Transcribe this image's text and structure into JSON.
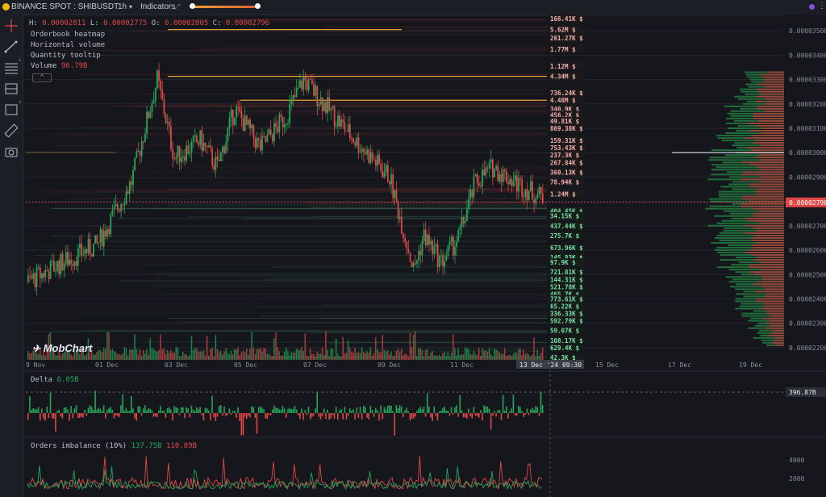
{
  "topbar": {
    "symbol": "BINANCE SPOT : SHIBUSDT",
    "timeframe": "1h",
    "indicators_label": "Indicators"
  },
  "icons": [
    "crosshair-icon",
    "trendline-icon",
    "fib-icon",
    "patterns-icon",
    "rectangle-icon",
    "ruler-icon",
    "screenshot-icon"
  ],
  "ohlc": {
    "h_label": "H:",
    "h": "0.00002811",
    "l_label": "L:",
    "l": "0.00002775",
    "o_label": "O:",
    "o": "0.00002805",
    "c_label": "C:",
    "c": "0.00002796"
  },
  "legend": {
    "orderbook_heatmap": "Orderbook heatmap",
    "horizontal_volume": "Horizontal volume",
    "quantity_tooltip": "Quantity tooltip",
    "volume_label": "Volume",
    "volume_value": "96.79B"
  },
  "watermark": "MobChart",
  "colors": {
    "up": "#26a65b",
    "down": "#e04848",
    "ask_label": "#f0a0a0",
    "bid_label": "#4fd18b",
    "orange": "#e8a23a"
  },
  "price_axis": [
    "0.00003500",
    "0.00003400",
    "0.00003300",
    "0.00003200",
    "0.00003100",
    "0.00003000",
    "0.00002900",
    "0.00002800",
    "0.00002700",
    "0.00002600",
    "0.00002500",
    "0.00002400",
    "0.00002300",
    "0.00002200"
  ],
  "price_range": [
    2.15e-05,
    3.56e-05
  ],
  "current_price": "0.00002796",
  "time_axis": [
    "9 Nov",
    "01 Dec",
    "03 Dec",
    "05 Dec",
    "07 Dec",
    "09 Dec",
    "11 Dec",
    "15 Dec",
    "17 Dec",
    "19 Dec"
  ],
  "cursor_time": "13 Dec '24  09:30",
  "ask_levels": [
    {
      "price": 3.55e-05,
      "qty": "166.41K $"
    },
    {
      "price": 3.505e-05,
      "qty": "5.62M $"
    },
    {
      "price": 3.47e-05,
      "qty": "261.27K $"
    },
    {
      "price": 3.425e-05,
      "qty": "1.77M $"
    },
    {
      "price": 3.355e-05,
      "qty": "1.12M $"
    },
    {
      "price": 3.313e-05,
      "qty": "4.34M $"
    },
    {
      "price": 3.245e-05,
      "qty": "736.24K $"
    },
    {
      "price": 3.215e-05,
      "qty": "4.48M $"
    },
    {
      "price": 3.18e-05,
      "qty": "340.9K $"
    },
    {
      "price": 3.155e-05,
      "qty": "456.2K $"
    },
    {
      "price": 3.13e-05,
      "qty": "49.81K $"
    },
    {
      "price": 3.1e-05,
      "qty": "869.38K $"
    },
    {
      "price": 3.05e-05,
      "qty": "159.31K $"
    },
    {
      "price": 3.02e-05,
      "qty": "753.43K $"
    },
    {
      "price": 2.99e-05,
      "qty": "237.3K $"
    },
    {
      "price": 2.96e-05,
      "qty": "267.84K $"
    },
    {
      "price": 2.92e-05,
      "qty": "360.13K $"
    },
    {
      "price": 2.88e-05,
      "qty": "78.94K $"
    },
    {
      "price": 2.83e-05,
      "qty": "1.24M $"
    }
  ],
  "bid_levels": [
    {
      "price": 2.76e-05,
      "qty": "404.45K $"
    },
    {
      "price": 2.74e-05,
      "qty": "34.15K $"
    },
    {
      "price": 2.7e-05,
      "qty": "437.44K $"
    },
    {
      "price": 2.66e-05,
      "qty": "275.7K $"
    },
    {
      "price": 2.61e-05,
      "qty": "673.96K $"
    },
    {
      "price": 2.57e-05,
      "qty": "145.83K $"
    },
    {
      "price": 2.55e-05,
      "qty": "97.9K $"
    },
    {
      "price": 2.51e-05,
      "qty": "721.81K $"
    },
    {
      "price": 2.48e-05,
      "qty": "144.31K $"
    },
    {
      "price": 2.45e-05,
      "qty": "521.78K $"
    },
    {
      "price": 2.42e-05,
      "qty": "465.7K $"
    },
    {
      "price": 2.4e-05,
      "qty": "773.61K $"
    },
    {
      "price": 2.37e-05,
      "qty": "65.22K $"
    },
    {
      "price": 2.34e-05,
      "qty": "336.33K $"
    },
    {
      "price": 2.31e-05,
      "qty": "592.79K $"
    },
    {
      "price": 2.27e-05,
      "qty": "59.07K $"
    },
    {
      "price": 2.23e-05,
      "qty": "108.17K $"
    },
    {
      "price": 2.2e-05,
      "qty": "629.4K $"
    },
    {
      "price": 2.16e-05,
      "qty": "42.3K $"
    }
  ],
  "delta_panel": {
    "label": "Delta",
    "value": "6.05B",
    "axis_value": "396.87B"
  },
  "imbalance_panel": {
    "label": "Orders imbalance (10%)",
    "value_green": "137.75B",
    "value_red": "110.89B",
    "axis_values": [
      "4000",
      "2000"
    ]
  }
}
